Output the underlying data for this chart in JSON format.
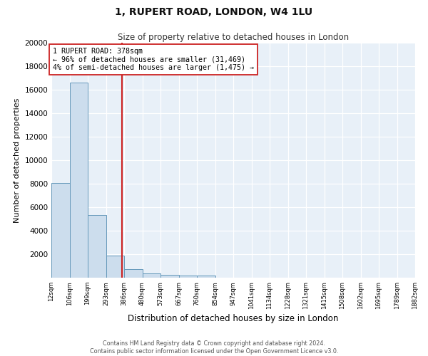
{
  "title": "1, RUPERT ROAD, LONDON, W4 1LU",
  "subtitle": "Size of property relative to detached houses in London",
  "xlabel": "Distribution of detached houses by size in London",
  "ylabel": "Number of detached properties",
  "bar_values": [
    8050,
    16600,
    5350,
    1850,
    700,
    380,
    230,
    190,
    160,
    0,
    0,
    0,
    0,
    0,
    0,
    0,
    0,
    0,
    0,
    0
  ],
  "bin_labels": [
    "12sqm",
    "106sqm",
    "199sqm",
    "293sqm",
    "386sqm",
    "480sqm",
    "573sqm",
    "667sqm",
    "760sqm",
    "854sqm",
    "947sqm",
    "1041sqm",
    "1134sqm",
    "1228sqm",
    "1321sqm",
    "1415sqm",
    "1508sqm",
    "1602sqm",
    "1695sqm",
    "1789sqm",
    "1882sqm"
  ],
  "bar_color": "#ccdded",
  "bar_edgecolor": "#6699bb",
  "vline_x": 3.88,
  "vline_color": "#cc2222",
  "annotation_text": "1 RUPERT ROAD: 378sqm\n← 96% of detached houses are smaller (31,469)\n4% of semi-detached houses are larger (1,475) →",
  "annotation_box_color": "white",
  "annotation_box_edgecolor": "#cc2222",
  "ylim": [
    0,
    20000
  ],
  "yticks": [
    0,
    2000,
    4000,
    6000,
    8000,
    10000,
    12000,
    14000,
    16000,
    18000,
    20000
  ],
  "footer_line1": "Contains HM Land Registry data © Crown copyright and database right 2024.",
  "footer_line2": "Contains public sector information licensed under the Open Government Licence v3.0.",
  "background_color": "#e8f0f8",
  "grid_color": "white"
}
